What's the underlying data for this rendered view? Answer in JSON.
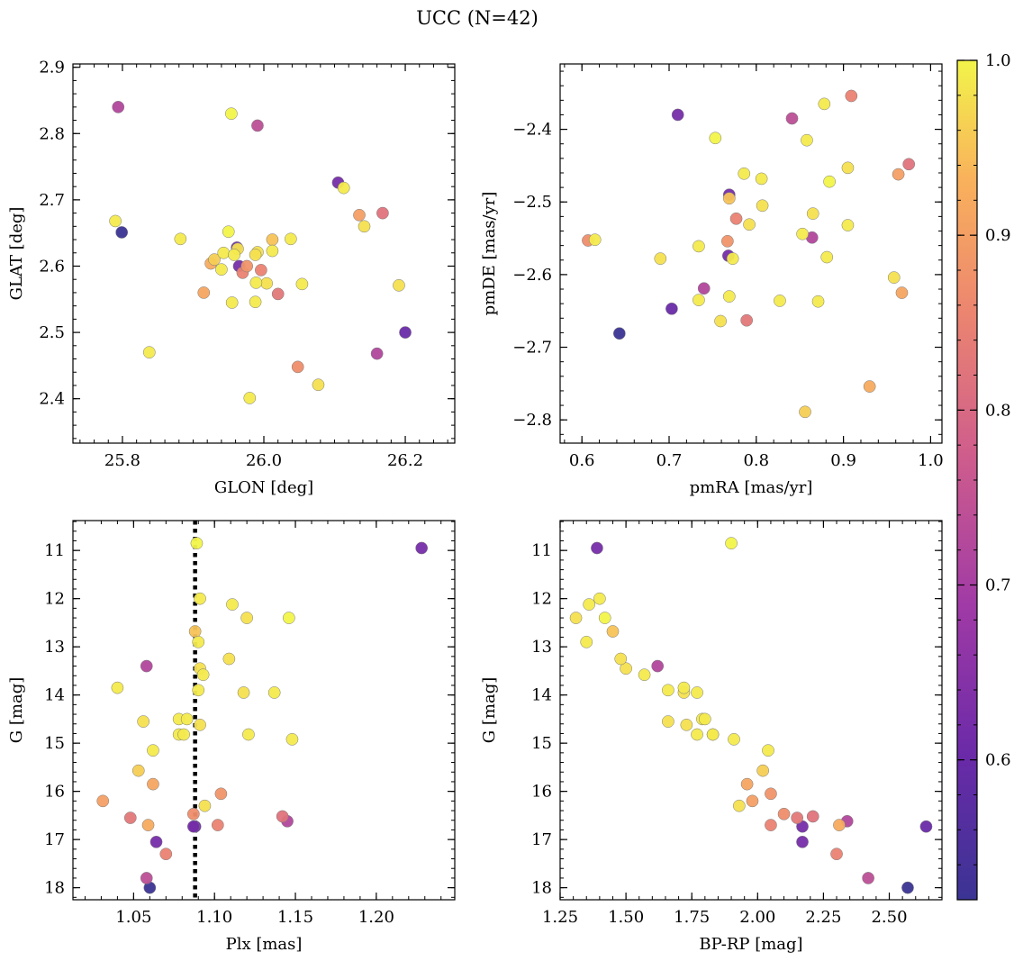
{
  "figure": {
    "title": "UCC (N=42)"
  },
  "colorbar": {
    "min": 0.52,
    "max": 1.0,
    "ticks": [
      0.6,
      0.7,
      0.8,
      0.9,
      1.0
    ],
    "tick_labels": [
      "0.6",
      "0.7",
      "0.8",
      "0.9",
      "1.0"
    ],
    "colormap": "plasma"
  },
  "stars": [
    {
      "glon": 25.794,
      "glat": 2.84,
      "pmra": 0.864,
      "pmde": -2.549,
      "plx": 1.058,
      "g": 13.4,
      "bprp": 1.62,
      "p": 0.72
    },
    {
      "glon": 25.954,
      "glat": 2.83,
      "pmra": 0.753,
      "pmde": -2.412,
      "plx": 1.089,
      "g": 10.85,
      "bprp": 1.9,
      "p": 1.0
    },
    {
      "glon": 25.991,
      "glat": 2.812,
      "pmra": 0.841,
      "pmde": -2.385,
      "plx": 1.058,
      "g": 17.8,
      "bprp": 2.42,
      "p": 0.74
    },
    {
      "glon": 26.105,
      "glat": 2.726,
      "pmra": 0.71,
      "pmde": -2.38,
      "plx": 1.228,
      "g": 10.95,
      "bprp": 1.39,
      "p": 0.62
    },
    {
      "glon": 26.113,
      "glat": 2.718,
      "pmra": 0.878,
      "pmde": -2.365,
      "plx": 1.091,
      "g": 12.0,
      "bprp": 1.4,
      "p": 0.99
    },
    {
      "glon": 26.168,
      "glat": 2.68,
      "pmra": 0.975,
      "pmde": -2.448,
      "plx": 1.142,
      "g": 16.52,
      "bprp": 2.21,
      "p": 0.82
    },
    {
      "glon": 26.135,
      "glat": 2.677,
      "pmra": 0.963,
      "pmde": -2.462,
      "plx": 1.031,
      "g": 16.2,
      "bprp": 1.98,
      "p": 0.9
    },
    {
      "glon": 25.79,
      "glat": 2.668,
      "pmra": 0.858,
      "pmde": -2.415,
      "plx": 1.111,
      "g": 12.12,
      "bprp": 1.36,
      "p": 0.99
    },
    {
      "glon": 26.142,
      "glat": 2.66,
      "pmra": 0.905,
      "pmde": -2.453,
      "plx": 1.12,
      "g": 12.4,
      "bprp": 1.31,
      "p": 0.98
    },
    {
      "glon": 25.799,
      "glat": 2.651,
      "pmra": 0.643,
      "pmde": -2.681,
      "plx": 1.06,
      "g": 18.0,
      "bprp": 2.57,
      "p": 0.52
    },
    {
      "glon": 25.95,
      "glat": 2.652,
      "pmra": 0.884,
      "pmde": -2.472,
      "plx": 1.146,
      "g": 12.4,
      "bprp": 1.42,
      "p": 1.0
    },
    {
      "glon": 25.882,
      "glat": 2.641,
      "pmra": 0.786,
      "pmde": -2.461,
      "plx": 1.09,
      "g": 12.9,
      "bprp": 1.35,
      "p": 0.99
    },
    {
      "glon": 26.012,
      "glat": 2.64,
      "pmra": 0.769,
      "pmde": -2.495,
      "plx": 1.088,
      "g": 12.68,
      "bprp": 1.45,
      "p": 0.95
    },
    {
      "glon": 26.038,
      "glat": 2.641,
      "pmra": 0.806,
      "pmde": -2.468,
      "plx": 1.093,
      "g": 13.58,
      "bprp": 1.57,
      "p": 0.99
    },
    {
      "glon": 25.962,
      "glat": 2.628,
      "pmra": 0.769,
      "pmde": -2.49,
      "plx": 1.087,
      "g": 16.73,
      "bprp": 2.17,
      "p": 0.62
    },
    {
      "glon": 25.963,
      "glat": 2.626,
      "pmra": 0.807,
      "pmde": -2.505,
      "plx": 1.091,
      "g": 13.45,
      "bprp": 1.5,
      "p": 0.98
    },
    {
      "glon": 25.991,
      "glat": 2.621,
      "pmra": 0.792,
      "pmde": -2.531,
      "plx": 1.109,
      "g": 13.25,
      "bprp": 1.48,
      "p": 0.98
    },
    {
      "glon": 25.988,
      "glat": 2.617,
      "pmra": 0.865,
      "pmde": -2.516,
      "plx": 1.118,
      "g": 13.95,
      "bprp": 1.72,
      "p": 0.98
    },
    {
      "glon": 26.012,
      "glat": 2.623,
      "pmra": 0.905,
      "pmde": -2.532,
      "plx": 1.09,
      "g": 13.9,
      "bprp": 1.66,
      "p": 0.99
    },
    {
      "glon": 25.943,
      "glat": 2.62,
      "pmra": 0.853,
      "pmde": -2.544,
      "plx": 1.04,
      "g": 13.85,
      "bprp": 1.72,
      "p": 0.99
    },
    {
      "glon": 25.958,
      "glat": 2.617,
      "pmra": 0.734,
      "pmde": -2.561,
      "plx": 1.137,
      "g": 13.95,
      "bprp": 1.77,
      "p": 0.99
    },
    {
      "glon": 25.976,
      "glat": 2.6,
      "pmra": 0.767,
      "pmde": -2.554,
      "plx": 1.104,
      "g": 16.05,
      "bprp": 2.05,
      "p": 0.88
    },
    {
      "glon": 25.965,
      "glat": 2.6,
      "pmra": 0.768,
      "pmde": -2.574,
      "plx": 1.064,
      "g": 17.05,
      "bprp": 2.17,
      "p": 0.62
    },
    {
      "glon": 25.996,
      "glat": 2.594,
      "pmra": 0.777,
      "pmde": -2.523,
      "plx": 1.102,
      "g": 16.7,
      "bprp": 2.05,
      "p": 0.85
    },
    {
      "glon": 26.004,
      "glat": 2.574,
      "pmra": 0.69,
      "pmde": -2.578,
      "plx": 1.056,
      "g": 14.55,
      "bprp": 1.66,
      "p": 0.98
    },
    {
      "glon": 25.989,
      "glat": 2.575,
      "pmra": 0.773,
      "pmde": -2.578,
      "plx": 1.078,
      "g": 14.5,
      "bprp": 1.79,
      "p": 0.99
    },
    {
      "glon": 26.054,
      "glat": 2.573,
      "pmra": 0.881,
      "pmde": -2.576,
      "plx": 1.083,
      "g": 14.5,
      "bprp": 1.8,
      "p": 0.99
    },
    {
      "glon": 26.191,
      "glat": 2.571,
      "pmra": 0.958,
      "pmde": -2.604,
      "plx": 1.091,
      "g": 14.62,
      "bprp": 1.73,
      "p": 0.98
    },
    {
      "glon": 25.915,
      "glat": 2.56,
      "pmra": 0.967,
      "pmde": -2.625,
      "plx": 1.062,
      "g": 15.85,
      "bprp": 1.96,
      "p": 0.91
    },
    {
      "glon": 26.02,
      "glat": 2.558,
      "pmra": 0.789,
      "pmde": -2.663,
      "plx": 1.048,
      "g": 16.55,
      "bprp": 2.15,
      "p": 0.83
    },
    {
      "glon": 25.955,
      "glat": 2.545,
      "pmra": 0.769,
      "pmde": -2.63,
      "plx": 1.121,
      "g": 14.82,
      "bprp": 1.77,
      "p": 0.99
    },
    {
      "glon": 25.988,
      "glat": 2.546,
      "pmra": 0.734,
      "pmde": -2.635,
      "plx": 1.078,
      "g": 14.82,
      "bprp": 1.83,
      "p": 0.99
    },
    {
      "glon": 26.2,
      "glat": 2.5,
      "pmra": 0.703,
      "pmde": -2.647,
      "plx": 1.088,
      "g": 16.73,
      "bprp": 2.64,
      "p": 0.6
    },
    {
      "glon": 25.838,
      "glat": 2.47,
      "pmra": 0.827,
      "pmde": -2.636,
      "plx": 1.081,
      "g": 14.82,
      "bprp": 1.83,
      "p": 0.99
    },
    {
      "glon": 26.16,
      "glat": 2.468,
      "pmra": 0.74,
      "pmde": -2.619,
      "plx": 1.145,
      "g": 16.62,
      "bprp": 2.34,
      "p": 0.72
    },
    {
      "glon": 26.048,
      "glat": 2.448,
      "pmra": 0.607,
      "pmde": -2.553,
      "plx": 1.087,
      "g": 16.47,
      "bprp": 2.1,
      "p": 0.87
    },
    {
      "glon": 26.077,
      "glat": 2.421,
      "pmra": 0.759,
      "pmde": -2.664,
      "plx": 1.094,
      "g": 16.3,
      "bprp": 1.93,
      "p": 0.98
    },
    {
      "glon": 25.98,
      "glat": 2.401,
      "pmra": 0.871,
      "pmde": -2.637,
      "plx": 1.148,
      "g": 14.92,
      "bprp": 1.91,
      "p": 0.99
    },
    {
      "glon": 25.94,
      "glat": 2.595,
      "pmra": 0.615,
      "pmde": -2.552,
      "plx": 1.062,
      "g": 15.15,
      "bprp": 2.04,
      "p": 0.99
    },
    {
      "glon": 25.93,
      "glat": 2.61,
      "pmra": 0.856,
      "pmde": -2.789,
      "plx": 1.053,
      "g": 15.57,
      "bprp": 2.02,
      "p": 0.96
    },
    {
      "glon": 25.925,
      "glat": 2.604,
      "pmra": 0.93,
      "pmde": -2.754,
      "plx": 1.059,
      "g": 16.7,
      "bprp": 2.31,
      "p": 0.92
    },
    {
      "glon": 25.97,
      "glat": 2.59,
      "pmra": 0.909,
      "pmde": -2.354,
      "plx": 1.07,
      "g": 17.3,
      "bprp": 2.3,
      "p": 0.85
    }
  ],
  "chart_data": [
    {
      "type": "scatter",
      "title": "",
      "x_field": "glon",
      "y_field": "glat",
      "xlabel": "GLON [deg]",
      "ylabel": "GLAT [deg]",
      "xlim": [
        25.73,
        26.27
      ],
      "ylim": [
        2.333,
        2.905
      ],
      "y_inverted": false,
      "xticks": [
        25.8,
        26.0,
        26.2
      ],
      "xtick_labels": [
        "25.8",
        "26.0",
        "26.2"
      ],
      "yticks": [
        2.4,
        2.5,
        2.6,
        2.7,
        2.8,
        2.9
      ],
      "ytick_labels": [
        "2.4",
        "2.5",
        "2.6",
        "2.7",
        "2.8",
        "2.9"
      ],
      "xminor": 0.02,
      "yminor": 0.02
    },
    {
      "type": "scatter",
      "title": "",
      "x_field": "pmra",
      "y_field": "pmde",
      "xlabel": "pmRA [mas/yr]",
      "ylabel": "pmDE [mas/yr]",
      "xlim": [
        0.575,
        1.013
      ],
      "ylim": [
        -2.832,
        -2.31
      ],
      "y_inverted": false,
      "xticks": [
        0.6,
        0.7,
        0.8,
        0.9,
        1.0
      ],
      "xtick_labels": [
        "0.6",
        "0.7",
        "0.8",
        "0.9",
        "1.0"
      ],
      "yticks": [
        -2.8,
        -2.7,
        -2.6,
        -2.5,
        -2.4
      ],
      "ytick_labels": [
        "−2.8",
        "−2.7",
        "−2.6",
        "−2.5",
        "−2.4"
      ],
      "xminor": 0.02,
      "yminor": 0.02
    },
    {
      "type": "scatter",
      "title": "",
      "x_field": "plx",
      "y_field": "g",
      "xlabel": "Plx [mas]",
      "ylabel": "G [mag]",
      "xlim": [
        1.0125,
        1.2485
      ],
      "ylim": [
        18.25,
        10.38
      ],
      "y_inverted": true,
      "xticks": [
        1.05,
        1.1,
        1.15,
        1.2
      ],
      "xtick_labels": [
        "1.05",
        "1.10",
        "1.15",
        "1.20"
      ],
      "yticks": [
        11,
        12,
        13,
        14,
        15,
        16,
        17,
        18
      ],
      "ytick_labels": [
        "11",
        "12",
        "13",
        "14",
        "15",
        "16",
        "17",
        "18"
      ],
      "xminor": 0.01,
      "yminor": 0.2,
      "vline": 1.088
    },
    {
      "type": "scatter",
      "title": "",
      "x_field": "bprp",
      "y_field": "g",
      "xlabel": "BP-RP [mag]",
      "ylabel": "G [mag]",
      "xlim": [
        1.25,
        2.7
      ],
      "ylim": [
        18.25,
        10.38
      ],
      "y_inverted": true,
      "xticks": [
        1.25,
        1.5,
        1.75,
        2.0,
        2.25,
        2.5
      ],
      "xtick_labels": [
        "1.25",
        "1.50",
        "1.75",
        "2.00",
        "2.25",
        "2.50"
      ],
      "yticks": [
        11,
        12,
        13,
        14,
        15,
        16,
        17,
        18
      ],
      "ytick_labels": [
        "11",
        "12",
        "13",
        "14",
        "15",
        "16",
        "17",
        "18"
      ],
      "xminor": 0.05,
      "yminor": 0.2
    }
  ]
}
